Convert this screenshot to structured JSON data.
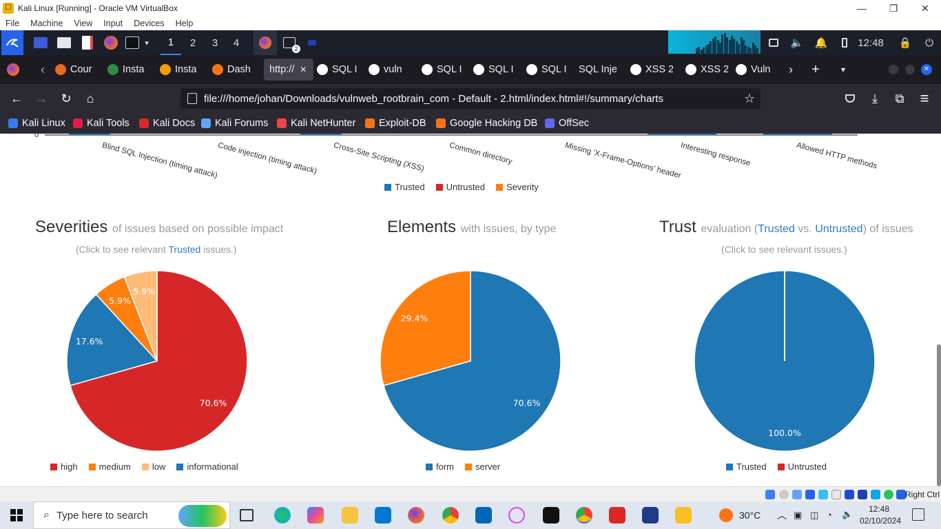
{
  "vbox": {
    "title": "Kali Linux [Running] - Oracle VM VirtualBox",
    "app_icon_glyph": "☐",
    "minimize": "—",
    "restore": "❐",
    "close": "✕",
    "menu": [
      "File",
      "Machine",
      "View",
      "Input",
      "Devices",
      "Help"
    ],
    "right_ctrl": "Right Ctrl"
  },
  "kali_panel": {
    "workspaces": [
      "1",
      "2",
      "3",
      "4"
    ],
    "active_workspace": "1",
    "terminal_badge": "2",
    "time": "12:48"
  },
  "tabs": [
    {
      "label": "Cour",
      "icon_color": "#e66b1c"
    },
    {
      "label": "Insta",
      "icon_color": "#2f8d46"
    },
    {
      "label": "Insta",
      "icon_color": "#f59e0b"
    },
    {
      "label": "Dash",
      "icon_color": "#f97316"
    },
    {
      "label": "http://",
      "active": true
    },
    {
      "label": "SQL I"
    },
    {
      "label": "vuln"
    },
    {
      "label": "SQL I"
    },
    {
      "label": "SQL I"
    },
    {
      "label": "SQL I"
    },
    {
      "label": "SQL Inje"
    },
    {
      "label": "XSS 2"
    },
    {
      "label": "XSS 2"
    },
    {
      "label": "Vuln"
    }
  ],
  "tab_close": "✕",
  "tab_new": "+",
  "nav": {
    "url": "file:///home/johan/Downloads/vulnweb_rootbrain_com - Default - 2.html/index.html#!/summary/charts",
    "back": "←",
    "forward": "→",
    "reload": "↻",
    "home": "⌂",
    "star": "☆",
    "menu": "≡"
  },
  "bookmarks": [
    {
      "label": "Kali Linux",
      "color": "#367bf0"
    },
    {
      "label": "Kali Tools",
      "color": "#e11d48"
    },
    {
      "label": "Kali Docs",
      "color": "#dc2626"
    },
    {
      "label": "Kali Forums",
      "color": "#60a5fa"
    },
    {
      "label": "Kali NetHunter",
      "color": "#ef4444"
    },
    {
      "label": "Exploit-DB",
      "color": "#f97316"
    },
    {
      "label": "Google Hacking DB",
      "color": "#f97316"
    },
    {
      "label": "OffSec",
      "color": "#6366f1"
    }
  ],
  "page": {
    "axis_zero": "0",
    "issue_types": [
      "Blind SQL Injection (timing attack)",
      "Code injection (timing attack)",
      "Cross-Site Scripting (XSS)",
      "Common directory",
      "Missing 'X-Frame-Options' header",
      "Interesting response",
      "Allowed HTTP methods"
    ],
    "top_legend": [
      {
        "label": "Trusted",
        "color": "#1f77b4"
      },
      {
        "label": "Untrusted",
        "color": "#d62728"
      },
      {
        "label": "Severity",
        "color": "#ff7f0e"
      }
    ],
    "severities": {
      "title": "Severities",
      "subtitle": "of issues based on possible impact",
      "note_pre": "(Click to see relevant",
      "note_link": "Trusted",
      "note_post": "issues.)",
      "slices": [
        {
          "label": "high",
          "value": 70.6,
          "text": "70.6%",
          "color": "#d62728"
        },
        {
          "label": "medium",
          "value": 5.9,
          "text": "5.9%",
          "color": "#ff7f0e"
        },
        {
          "label": "low",
          "value": 5.9,
          "text": "5.9%",
          "color": "#ffbb78"
        },
        {
          "label": "informational",
          "value": 17.6,
          "text": "17.6%",
          "color": "#1f77b4"
        }
      ]
    },
    "elements": {
      "title": "Elements",
      "subtitle": "with issues, by type",
      "slices": [
        {
          "label": "form",
          "value": 70.6,
          "text": "70.6%",
          "color": "#1f77b4"
        },
        {
          "label": "server",
          "value": 29.4,
          "text": "29.4%",
          "color": "#ff7f0e"
        }
      ]
    },
    "trust": {
      "title": "Trust",
      "subtitle_pre": "evaluation (",
      "subtitle_trusted": "Trusted",
      "subtitle_vs": "vs.",
      "subtitle_untrusted": "Untrusted",
      "subtitle_post": ") of issues",
      "note": "(Click to see relevant issues.)",
      "slices": [
        {
          "label": "Trusted",
          "value": 100.0,
          "text": "100.0%",
          "color": "#1f77b4"
        },
        {
          "label": "Untrusted",
          "value": 0,
          "text": "",
          "color": "#d62728"
        }
      ]
    }
  },
  "chart_data": [
    {
      "type": "pie",
      "title": "Severities of issues based on possible impact",
      "categories": [
        "high",
        "medium",
        "low",
        "informational"
      ],
      "values": [
        70.6,
        5.9,
        5.9,
        17.6
      ]
    },
    {
      "type": "pie",
      "title": "Elements with issues, by type",
      "categories": [
        "form",
        "server"
      ],
      "values": [
        70.6,
        29.4
      ]
    },
    {
      "type": "pie",
      "title": "Trust evaluation (Trusted vs. Untrusted) of issues",
      "categories": [
        "Trusted",
        "Untrusted"
      ],
      "values": [
        100.0,
        0
      ]
    }
  ],
  "taskbar": {
    "search_placeholder": "Type here to search",
    "temperature": "30°C",
    "time": "12:48",
    "date": "02/10/2024"
  }
}
